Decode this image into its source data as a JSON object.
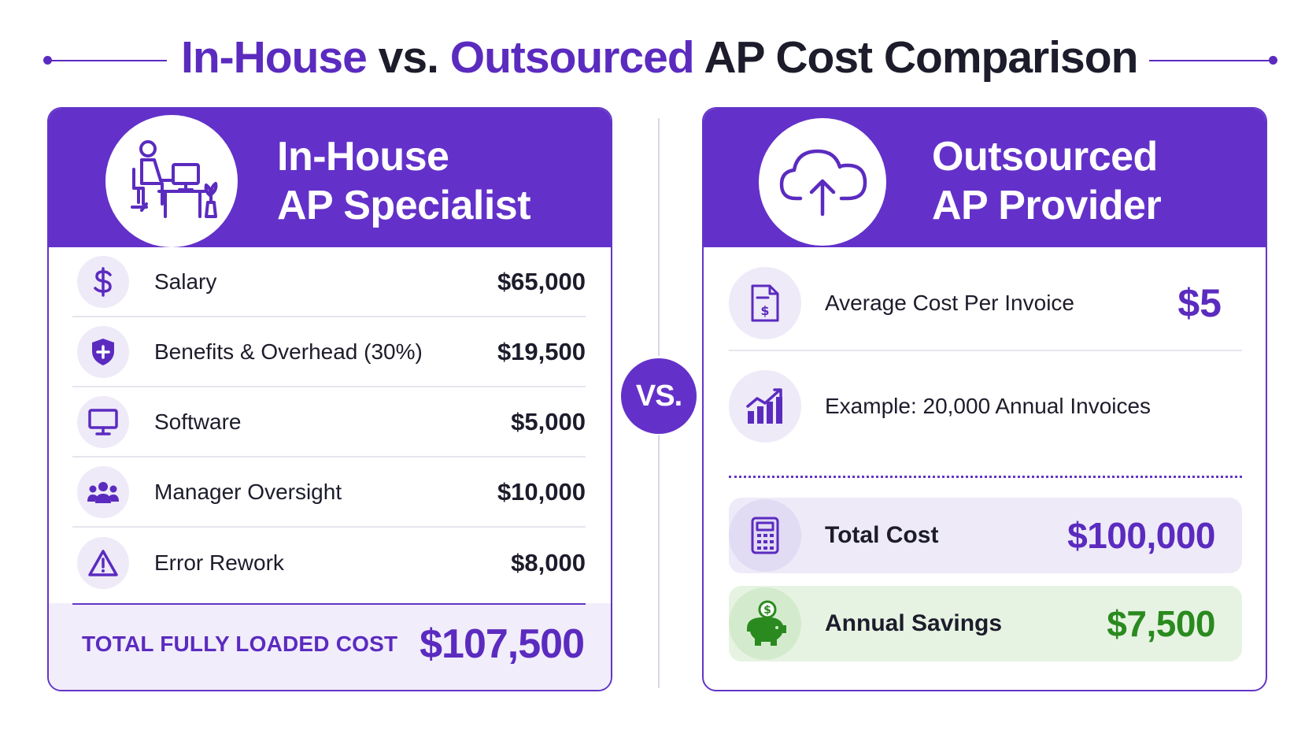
{
  "header": {
    "title_part1": "In-House",
    "title_part2": " vs. ",
    "title_part3": "Outsourced",
    "title_part4": " AP Cost Comparison"
  },
  "colors": {
    "brand_purple": "#6331c9",
    "accent_purple": "#5b2bbf",
    "savings_green": "#2a8a1f"
  },
  "in_house": {
    "title_line1": "In-House",
    "title_line2": "AP Specialist",
    "header_icon": "person-at-desk-icon",
    "items": [
      {
        "icon": "dollar-icon",
        "label": "Salary",
        "value": "$65,000"
      },
      {
        "icon": "shield-plus-icon",
        "label": "Benefits & Overhead (30%)",
        "value": "$19,500"
      },
      {
        "icon": "monitor-icon",
        "label": "Software",
        "value": "$5,000"
      },
      {
        "icon": "people-group-icon",
        "label": "Manager Oversight",
        "value": "$10,000"
      },
      {
        "icon": "warning-triangle-icon",
        "label": "Error Rework",
        "value": "$8,000"
      }
    ],
    "total_label": "TOTAL FULLY LOADED COST",
    "total_value": "$107,500"
  },
  "vs_label": "VS.",
  "outsourced": {
    "title_line1": "Outsourced",
    "title_line2": "AP Provider",
    "header_icon": "cloud-upload-icon",
    "avg_cost_label": "Average Cost Per Invoice",
    "avg_cost_icon": "invoice-document-icon",
    "avg_cost_value": "$5",
    "example_label": "Example: 20,000 Annual Invoices",
    "example_icon": "growth-chart-icon",
    "total_label": "Total Cost",
    "total_icon": "calculator-icon",
    "total_value": "$100,000",
    "savings_label": "Annual Savings",
    "savings_icon": "piggy-bank-icon",
    "savings_value": "$7,500"
  }
}
